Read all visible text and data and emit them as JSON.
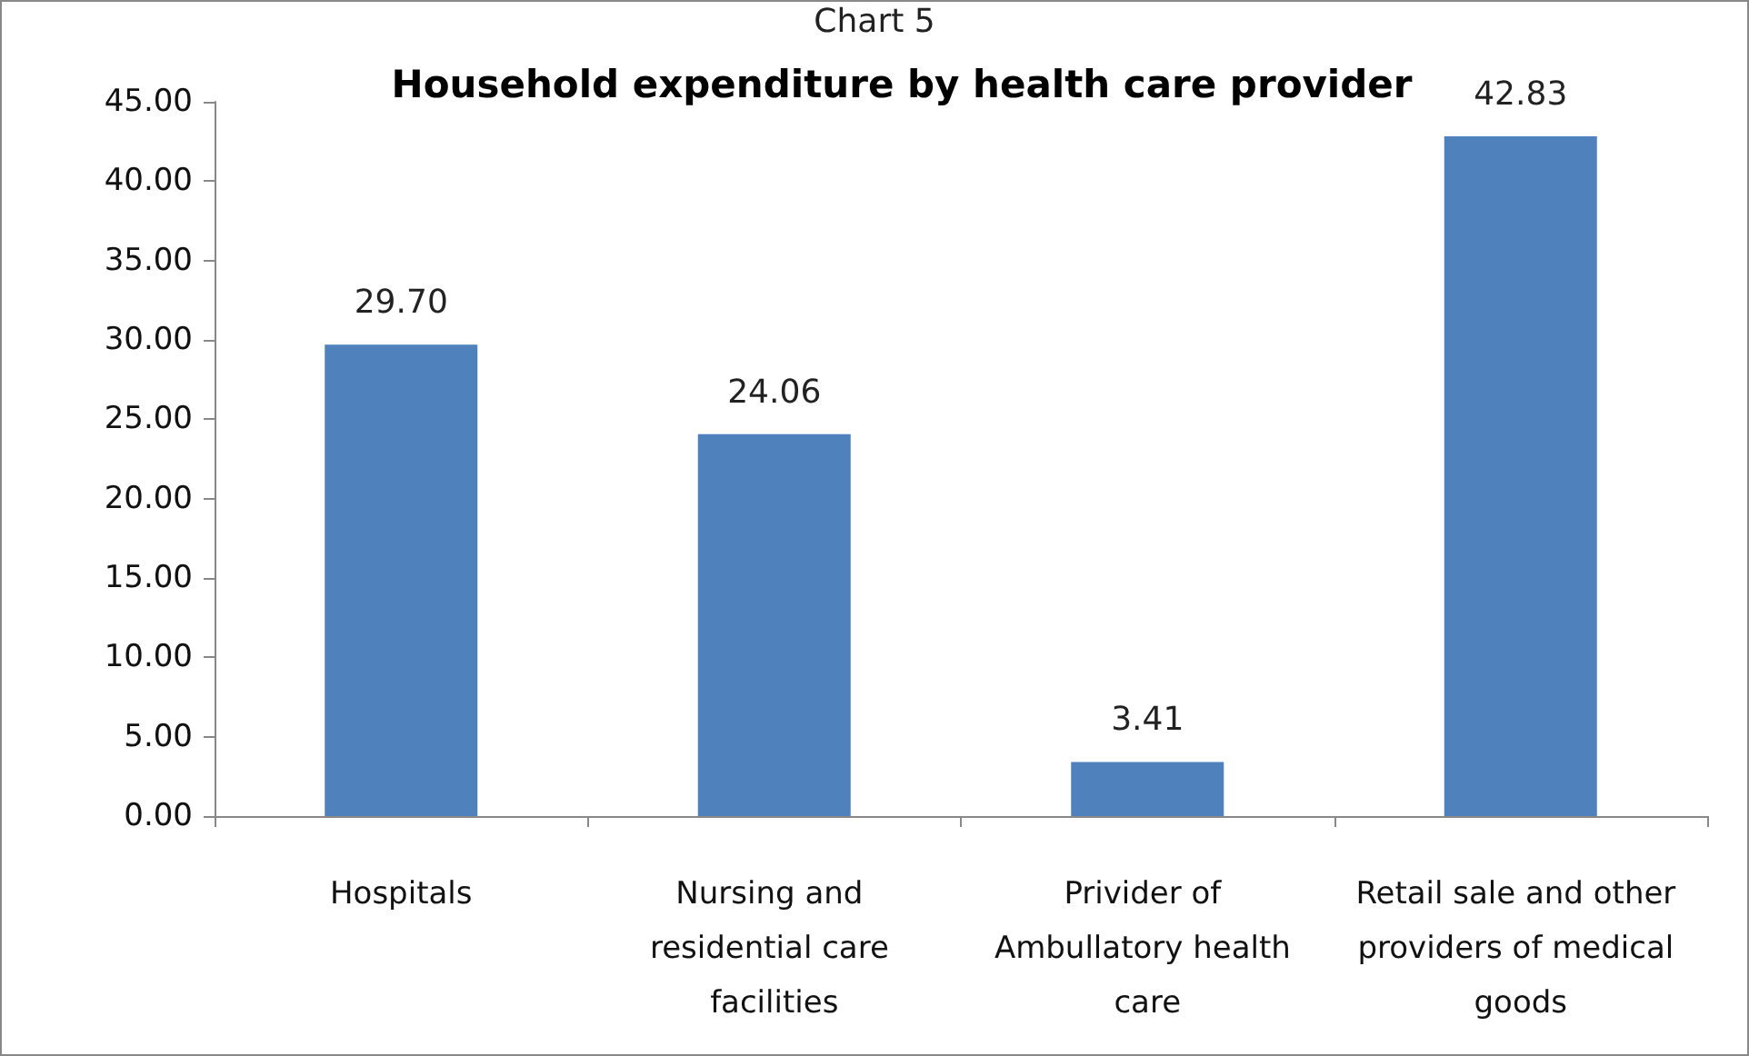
{
  "chart_data": {
    "type": "bar",
    "title": "Household expenditure by health care provider",
    "annotations": [
      "Chart 5"
    ],
    "categories": [
      "Hospitals",
      "Nursing and residential care facilities",
      "Privider of Ambullatory health care",
      "Retail sale and other providers of medical goods"
    ],
    "values": [
      29.7,
      24.06,
      3.41,
      42.83
    ],
    "value_labels": [
      "29.70",
      "24.06",
      "3.41",
      "42.83"
    ],
    "color": "#4f81bd",
    "ylim": [
      0,
      45
    ],
    "yticks": [
      {
        "value": 0,
        "label": "0.00"
      },
      {
        "value": 5,
        "label": "5.00"
      },
      {
        "value": 10,
        "label": "10.00"
      },
      {
        "value": 15,
        "label": "15.00"
      },
      {
        "value": 20,
        "label": "20.00"
      },
      {
        "value": 25,
        "label": "25.00"
      },
      {
        "value": 30,
        "label": "30.00"
      },
      {
        "value": 35,
        "label": "35.00"
      },
      {
        "value": 40,
        "label": "40.00"
      },
      {
        "value": 45,
        "label": "45.00"
      }
    ],
    "grid": false
  }
}
